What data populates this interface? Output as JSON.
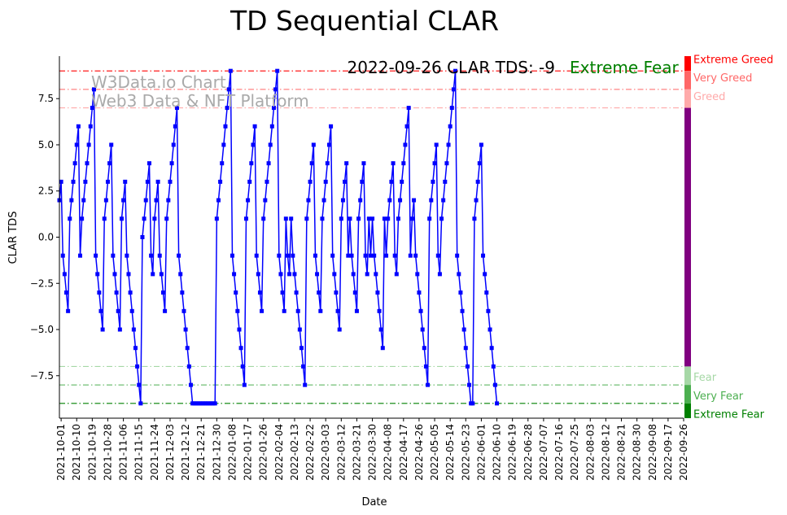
{
  "chart_data": {
    "type": "line",
    "title": "TD Sequential CLAR",
    "xlabel": "Date",
    "ylabel": "CLAR TDS",
    "xlim": [
      "2021-09-30",
      "2022-09-26"
    ],
    "ylim": [
      -9.8,
      9.8
    ],
    "yticks": [
      -7.5,
      -5.0,
      -2.5,
      0.0,
      2.5,
      5.0,
      7.5
    ],
    "ytick_labels": [
      "−7.5",
      "−5.0",
      "−2.5",
      "0.0",
      "2.5",
      "5.0",
      "7.5"
    ],
    "xtick_labels": [
      "2021-10-01",
      "2021-10-10",
      "2021-10-19",
      "2021-10-28",
      "2021-11-06",
      "2021-11-15",
      "2021-11-24",
      "2021-12-03",
      "2021-12-12",
      "2021-12-21",
      "2021-12-30",
      "2022-01-08",
      "2022-01-17",
      "2022-01-26",
      "2022-02-04",
      "2022-02-13",
      "2022-02-22",
      "2022-03-03",
      "2022-03-12",
      "2022-03-21",
      "2022-03-30",
      "2022-04-08",
      "2022-04-17",
      "2022-04-26",
      "2022-05-05",
      "2022-05-14",
      "2022-05-23",
      "2022-06-01",
      "2022-06-10",
      "2022-06-19",
      "2022-06-28",
      "2022-07-07",
      "2022-07-16",
      "2022-07-25",
      "2022-08-03",
      "2022-08-12",
      "2022-08-21",
      "2022-08-30",
      "2022-09-08",
      "2022-09-17",
      "2022-09-26"
    ],
    "grid": false,
    "series_color": "#0000ff",
    "start_date": "2021-09-30",
    "values": [
      2,
      3,
      -1,
      -2,
      -3,
      -4,
      1,
      2,
      3,
      4,
      5,
      6,
      -1,
      1,
      2,
      3,
      4,
      5,
      6,
      7,
      8,
      -1,
      -2,
      -3,
      -4,
      -5,
      1,
      2,
      3,
      4,
      5,
      -1,
      -2,
      -3,
      -4,
      -5,
      1,
      2,
      3,
      -1,
      -2,
      -3,
      -4,
      -5,
      -6,
      -7,
      -8,
      -9,
      0,
      1,
      2,
      3,
      4,
      -1,
      -2,
      1,
      2,
      3,
      -1,
      -2,
      -3,
      -4,
      1,
      2,
      3,
      4,
      5,
      6,
      7,
      -1,
      -2,
      -3,
      -4,
      -5,
      -6,
      -7,
      -8,
      -9,
      -9,
      -9,
      -9,
      -9,
      -9,
      -9,
      -9,
      -9,
      -9,
      -9,
      -9,
      -9,
      -9,
      1,
      2,
      3,
      4,
      5,
      6,
      7,
      8,
      9,
      -1,
      -2,
      -3,
      -4,
      -5,
      -6,
      -7,
      -8,
      1,
      2,
      3,
      4,
      5,
      6,
      -1,
      -2,
      -3,
      -4,
      1,
      2,
      3,
      4,
      5,
      6,
      7,
      8,
      9,
      -1,
      -2,
      -3,
      -4,
      1,
      -1,
      -2,
      1,
      -1,
      -2,
      -3,
      -4,
      -5,
      -6,
      -7,
      -8,
      1,
      2,
      3,
      4,
      5,
      -1,
      -2,
      -3,
      -4,
      1,
      2,
      3,
      4,
      5,
      6,
      -1,
      -2,
      -3,
      -4,
      -5,
      1,
      2,
      3,
      4,
      -1,
      1,
      -1,
      -2,
      -3,
      -4,
      1,
      2,
      3,
      4,
      -1,
      -2,
      1,
      -1,
      1,
      -1,
      -2,
      -3,
      -4,
      -5,
      -6,
      1,
      -1,
      1,
      2,
      3,
      4,
      -1,
      -2,
      1,
      2,
      3,
      4,
      5,
      6,
      7,
      -1,
      1,
      2,
      -1,
      -2,
      -3,
      -4,
      -5,
      -6,
      -7,
      -8,
      1,
      2,
      3,
      4,
      5,
      -1,
      -2,
      1,
      2,
      3,
      4,
      5,
      6,
      7,
      8,
      9,
      -1,
      -2,
      -3,
      -4,
      -5,
      -6,
      -7,
      -8,
      -9,
      -9,
      1,
      2,
      3,
      4,
      5,
      -1,
      -2,
      -3,
      -4,
      -5,
      -6,
      -7,
      -8,
      -9
    ],
    "levels": [
      {
        "name": "Extreme Greed",
        "value": 9,
        "color": "#ff0000"
      },
      {
        "name": "Very Greed",
        "value": 8,
        "color": "#ff6666"
      },
      {
        "name": "Greed",
        "value": 7,
        "color": "#ffaaaa"
      },
      {
        "name": "Fear",
        "value": -7,
        "color": "#a6d8a6"
      },
      {
        "name": "Very Fear",
        "value": -8,
        "color": "#4caf50"
      },
      {
        "name": "Extreme Fear",
        "value": -9,
        "color": "#008000"
      }
    ],
    "annotation": "2022-09-26 CLAR TDS: -9",
    "annotation_status": "Extreme Fear",
    "annotation_status_color": "#008000",
    "status_bar_color": "#800080"
  },
  "watermark": {
    "line1": "W3Data.io Chart",
    "line2": "Web3 Data & NFT Platform"
  }
}
